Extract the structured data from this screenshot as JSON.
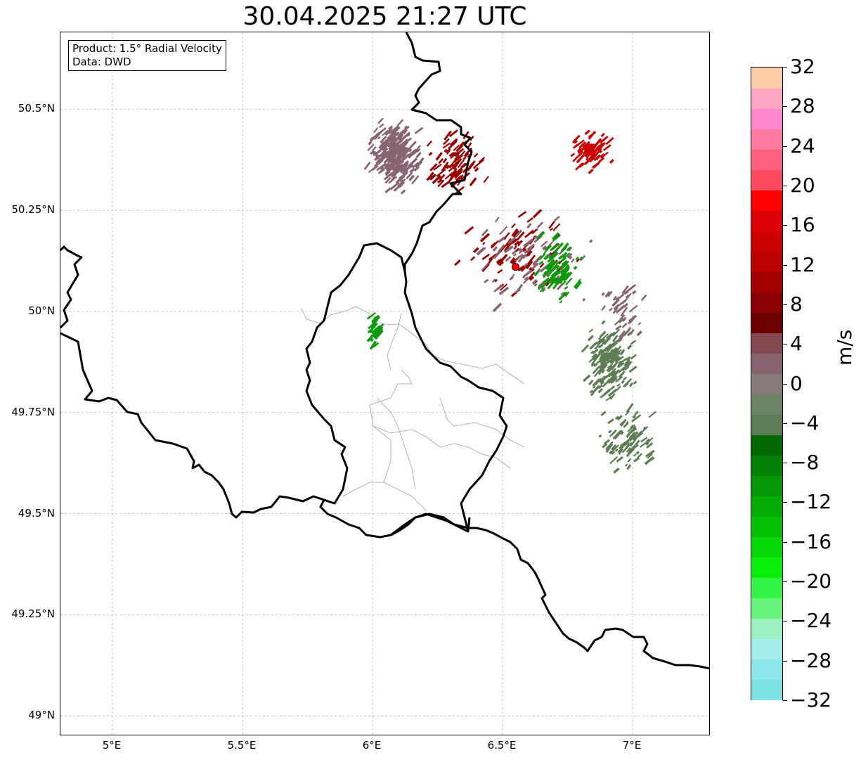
{
  "title": "30.04.2025 21:27 UTC",
  "info": {
    "product": "Product: 1.5° Radial Velocity",
    "data": "Data: DWD"
  },
  "map": {
    "lon_range": [
      4.8,
      7.3
    ],
    "lat_range": [
      48.95,
      50.69
    ],
    "lon_ticks": [
      {
        "value": 5.0,
        "label": "5°E"
      },
      {
        "value": 5.5,
        "label": "5.5°E"
      },
      {
        "value": 6.0,
        "label": "6°E"
      },
      {
        "value": 6.5,
        "label": "6.5°E"
      },
      {
        "value": 7.0,
        "label": "7°E"
      }
    ],
    "lat_ticks": [
      {
        "value": 50.5,
        "label": "50.5°N"
      },
      {
        "value": 50.25,
        "label": "50.25°N"
      },
      {
        "value": 50.0,
        "label": "50°N"
      },
      {
        "value": 49.75,
        "label": "49.75°N"
      },
      {
        "value": 49.5,
        "label": "49.5°N"
      },
      {
        "value": 49.25,
        "label": "49.25°N"
      },
      {
        "value": 49.0,
        "label": "49°N"
      }
    ],
    "grid": true,
    "radar_site": {
      "lon": 6.55,
      "lat": 50.11,
      "color": "#ff0000"
    },
    "colors": {
      "border": "#000000",
      "admin": "#a0a0a0",
      "grid": "#b0b0b0"
    }
  },
  "colorbar": {
    "unit": "m/s",
    "min": -32,
    "max": 32,
    "ticks": [
      {
        "value": 32,
        "label": "32"
      },
      {
        "value": 28,
        "label": "28"
      },
      {
        "value": 24,
        "label": "24"
      },
      {
        "value": 20,
        "label": "20"
      },
      {
        "value": 16,
        "label": "16"
      },
      {
        "value": 12,
        "label": "12"
      },
      {
        "value": 8,
        "label": "8"
      },
      {
        "value": 4,
        "label": "4"
      },
      {
        "value": 0,
        "label": "0"
      },
      {
        "value": -4,
        "label": "−4"
      },
      {
        "value": -8,
        "label": "−8"
      },
      {
        "value": -12,
        "label": "−12"
      },
      {
        "value": -16,
        "label": "−16"
      },
      {
        "value": -20,
        "label": "−20"
      },
      {
        "value": -24,
        "label": "−24"
      },
      {
        "value": -28,
        "label": "−28"
      },
      {
        "value": -32,
        "label": "−32"
      }
    ],
    "segments": [
      "#7ee3e6",
      "#8ce8ea",
      "#a6ecec",
      "#9df2c4",
      "#66f57a",
      "#33f548",
      "#08f008",
      "#08d808",
      "#06c206",
      "#06ac06",
      "#069606",
      "#048004",
      "#036a03",
      "#5c7c56",
      "#6a8464",
      "#877b79",
      "#86636f",
      "#844850",
      "#6e0000",
      "#8a0000",
      "#a40000",
      "#bc0000",
      "#cc0000",
      "#dd0008",
      "#ff0000",
      "#ff4a60",
      "#ff6080",
      "#ff7aa0",
      "#ff88cc",
      "#ffa6c4",
      "#ffccaa"
    ]
  },
  "echoes": {
    "palette": {
      "dark_red": "#9a0000",
      "red": "#cc0000",
      "mauve": "#876472",
      "sage": "#5f7d55",
      "green": "#0a9a0a"
    },
    "clusters": [
      {
        "color": "mauve",
        "lon": 6.08,
        "lat": 50.38,
        "spread_lon": 0.12,
        "spread_lat": 0.1,
        "count": 260
      },
      {
        "color": "dark_red",
        "lon": 6.3,
        "lat": 50.36,
        "spread_lon": 0.15,
        "spread_lat": 0.1,
        "count": 90
      },
      {
        "color": "red",
        "lon": 6.83,
        "lat": 50.39,
        "spread_lon": 0.1,
        "spread_lat": 0.06,
        "count": 80
      },
      {
        "color": "dark_red",
        "lon": 6.55,
        "lat": 50.15,
        "spread_lon": 0.28,
        "spread_lat": 0.13,
        "count": 90
      },
      {
        "color": "mauve",
        "lon": 6.6,
        "lat": 50.12,
        "spread_lon": 0.28,
        "spread_lat": 0.14,
        "count": 80
      },
      {
        "color": "green",
        "lon": 6.7,
        "lat": 50.1,
        "spread_lon": 0.12,
        "spread_lat": 0.1,
        "count": 90
      },
      {
        "color": "sage",
        "lon": 6.9,
        "lat": 49.87,
        "spread_lon": 0.12,
        "spread_lat": 0.12,
        "count": 170
      },
      {
        "color": "sage",
        "lon": 6.98,
        "lat": 49.67,
        "spread_lon": 0.14,
        "spread_lat": 0.1,
        "count": 90
      },
      {
        "color": "mauve",
        "lon": 6.95,
        "lat": 50.0,
        "spread_lon": 0.1,
        "spread_lat": 0.1,
        "count": 40
      },
      {
        "color": "green",
        "lon": 6.0,
        "lat": 49.95,
        "spread_lon": 0.04,
        "spread_lat": 0.05,
        "count": 35
      }
    ]
  }
}
